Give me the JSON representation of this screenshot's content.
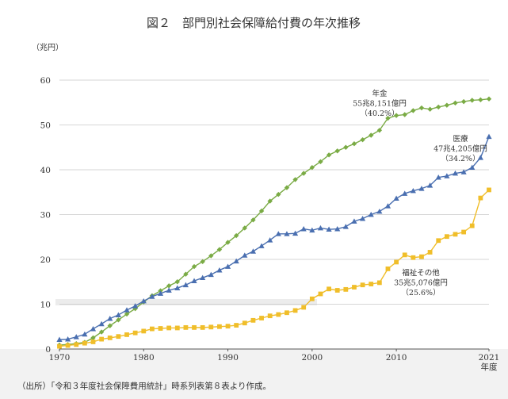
{
  "chart_data": {
    "type": "line",
    "title": "図２　部門別社会保障給付費の年次推移",
    "ylabel": "（兆円）",
    "xlabel_extra": "年度",
    "ylim": [
      0,
      60
    ],
    "yticks": [
      0,
      10,
      20,
      30,
      40,
      50,
      60
    ],
    "xticks": [
      "1970",
      "1980",
      "1990",
      "2000",
      "2010",
      "2021"
    ],
    "xtick_values": [
      1970,
      1980,
      1990,
      2000,
      2010,
      2021
    ],
    "xlim": [
      1970,
      2021
    ],
    "grid": true,
    "series": [
      {
        "name": "年金",
        "color": "#7aab45",
        "marker": "diamond",
        "x": [
          1970,
          1971,
          1972,
          1973,
          1974,
          1975,
          1976,
          1977,
          1978,
          1979,
          1980,
          1981,
          1982,
          1983,
          1984,
          1985,
          1986,
          1987,
          1988,
          1989,
          1990,
          1991,
          1992,
          1993,
          1994,
          1995,
          1996,
          1997,
          1998,
          1999,
          2000,
          2001,
          2002,
          2003,
          2004,
          2005,
          2006,
          2007,
          2008,
          2009,
          2010,
          2011,
          2012,
          2013,
          2014,
          2015,
          2016,
          2017,
          2018,
          2019,
          2020,
          2021
        ],
        "values": [
          0.9,
          1.0,
          1.2,
          1.5,
          2.5,
          3.8,
          5.2,
          6.5,
          7.8,
          9.0,
          10.5,
          11.9,
          13.0,
          14.1,
          15.0,
          16.7,
          18.4,
          19.5,
          20.8,
          22.2,
          23.8,
          25.3,
          27.0,
          28.8,
          30.8,
          33.0,
          34.5,
          36.0,
          37.8,
          39.2,
          40.5,
          41.8,
          43.3,
          44.2,
          45.0,
          45.8,
          46.7,
          47.7,
          48.8,
          51.5,
          52.1,
          52.3,
          53.2,
          53.8,
          53.5,
          54.0,
          54.4,
          54.9,
          55.2,
          55.5,
          55.6,
          55.8
        ]
      },
      {
        "name": "医療",
        "color": "#4a6fb0",
        "marker": "triangle",
        "x": [
          1970,
          1971,
          1972,
          1973,
          1974,
          1975,
          1976,
          1977,
          1978,
          1979,
          1980,
          1981,
          1982,
          1983,
          1984,
          1985,
          1986,
          1987,
          1988,
          1989,
          1990,
          1991,
          1992,
          1993,
          1994,
          1995,
          1996,
          1997,
          1998,
          1999,
          2000,
          2001,
          2002,
          2003,
          2004,
          2005,
          2006,
          2007,
          2008,
          2009,
          2010,
          2011,
          2012,
          2013,
          2014,
          2015,
          2016,
          2017,
          2018,
          2019,
          2020,
          2021
        ],
        "values": [
          2.1,
          2.2,
          2.7,
          3.3,
          4.5,
          5.6,
          6.8,
          7.6,
          8.7,
          9.6,
          10.7,
          11.7,
          12.4,
          13.1,
          13.6,
          14.3,
          15.2,
          15.9,
          16.6,
          17.6,
          18.4,
          19.6,
          20.9,
          21.8,
          23.0,
          24.3,
          25.7,
          25.7,
          25.8,
          26.8,
          26.5,
          27.0,
          26.7,
          26.8,
          27.3,
          28.5,
          29.1,
          30.0,
          30.7,
          31.9,
          33.6,
          34.7,
          35.3,
          35.8,
          36.5,
          38.3,
          38.6,
          39.2,
          39.5,
          40.5,
          42.7,
          47.4
        ]
      },
      {
        "name": "福祉その他",
        "color": "#f0be2a",
        "marker": "square",
        "x": [
          1970,
          1971,
          1972,
          1973,
          1974,
          1975,
          1976,
          1977,
          1978,
          1979,
          1980,
          1981,
          1982,
          1983,
          1984,
          1985,
          1986,
          1987,
          1988,
          1989,
          1990,
          1991,
          1992,
          1993,
          1994,
          1995,
          1996,
          1997,
          1998,
          1999,
          2000,
          2001,
          2002,
          2003,
          2004,
          2005,
          2006,
          2007,
          2008,
          2009,
          2010,
          2011,
          2012,
          2013,
          2014,
          2015,
          2016,
          2017,
          2018,
          2019,
          2020,
          2021
        ],
        "values": [
          0.6,
          0.8,
          1.0,
          1.3,
          1.6,
          2.2,
          2.5,
          2.8,
          3.2,
          3.6,
          4.0,
          4.5,
          4.6,
          4.7,
          4.7,
          4.8,
          4.8,
          4.8,
          4.9,
          5.0,
          5.1,
          5.3,
          5.8,
          6.4,
          6.9,
          7.4,
          7.7,
          8.1,
          8.6,
          9.3,
          11.2,
          12.3,
          13.4,
          13.1,
          13.3,
          13.8,
          14.3,
          14.5,
          14.8,
          17.9,
          19.4,
          21.0,
          20.4,
          20.6,
          21.6,
          24.2,
          25.1,
          25.6,
          26.1,
          27.5,
          33.7,
          35.5
        ]
      }
    ],
    "annotations": [
      {
        "series": "年金",
        "lines": [
          "年金",
          "55兆8,151億円",
          "（40.2%）"
        ]
      },
      {
        "series": "医療",
        "lines": [
          "医療",
          "47兆4,205億円",
          "（34.2%）"
        ]
      },
      {
        "series": "福祉その他",
        "lines": [
          "福祉その他",
          "35兆5,076億円",
          "（25.6%）"
        ]
      }
    ],
    "source": "（出所）「令和３年度社会保障費用統計」時系列表第８表より作成。"
  }
}
